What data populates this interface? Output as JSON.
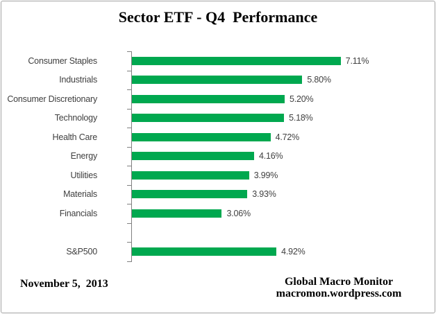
{
  "window": {
    "title": "Sector ETF - Q4  Performance"
  },
  "chart_data": {
    "type": "bar",
    "orientation": "horizontal",
    "title": "Sector ETF - Q4  Performance",
    "categories": [
      "Consumer Staples",
      "Industrials",
      "Consumer Discretionary",
      "Technology",
      "Health Care",
      "Energy",
      "Utilities",
      "Materials",
      "Financials",
      "",
      "S&P500"
    ],
    "values": [
      7.11,
      5.8,
      5.2,
      5.18,
      4.72,
      4.16,
      3.99,
      3.93,
      3.06,
      null,
      4.92
    ],
    "value_labels": [
      "7.11%",
      "5.80%",
      "5.20%",
      "5.18%",
      "4.72%",
      "4.16%",
      "3.99%",
      "3.93%",
      "3.06%",
      "",
      "4.92%"
    ],
    "xlabel": "",
    "ylabel": "",
    "xlim": [
      0,
      10
    ],
    "grid": false,
    "legend": false,
    "data_labels": true,
    "bar_color": "#00a84f",
    "axis_color": "#808080",
    "label_color": "#3f3f3f"
  },
  "footer": {
    "date": "November 5,  2013",
    "attribution": [
      "Global Macro Monitor",
      "macromon.wordpress.com"
    ]
  }
}
